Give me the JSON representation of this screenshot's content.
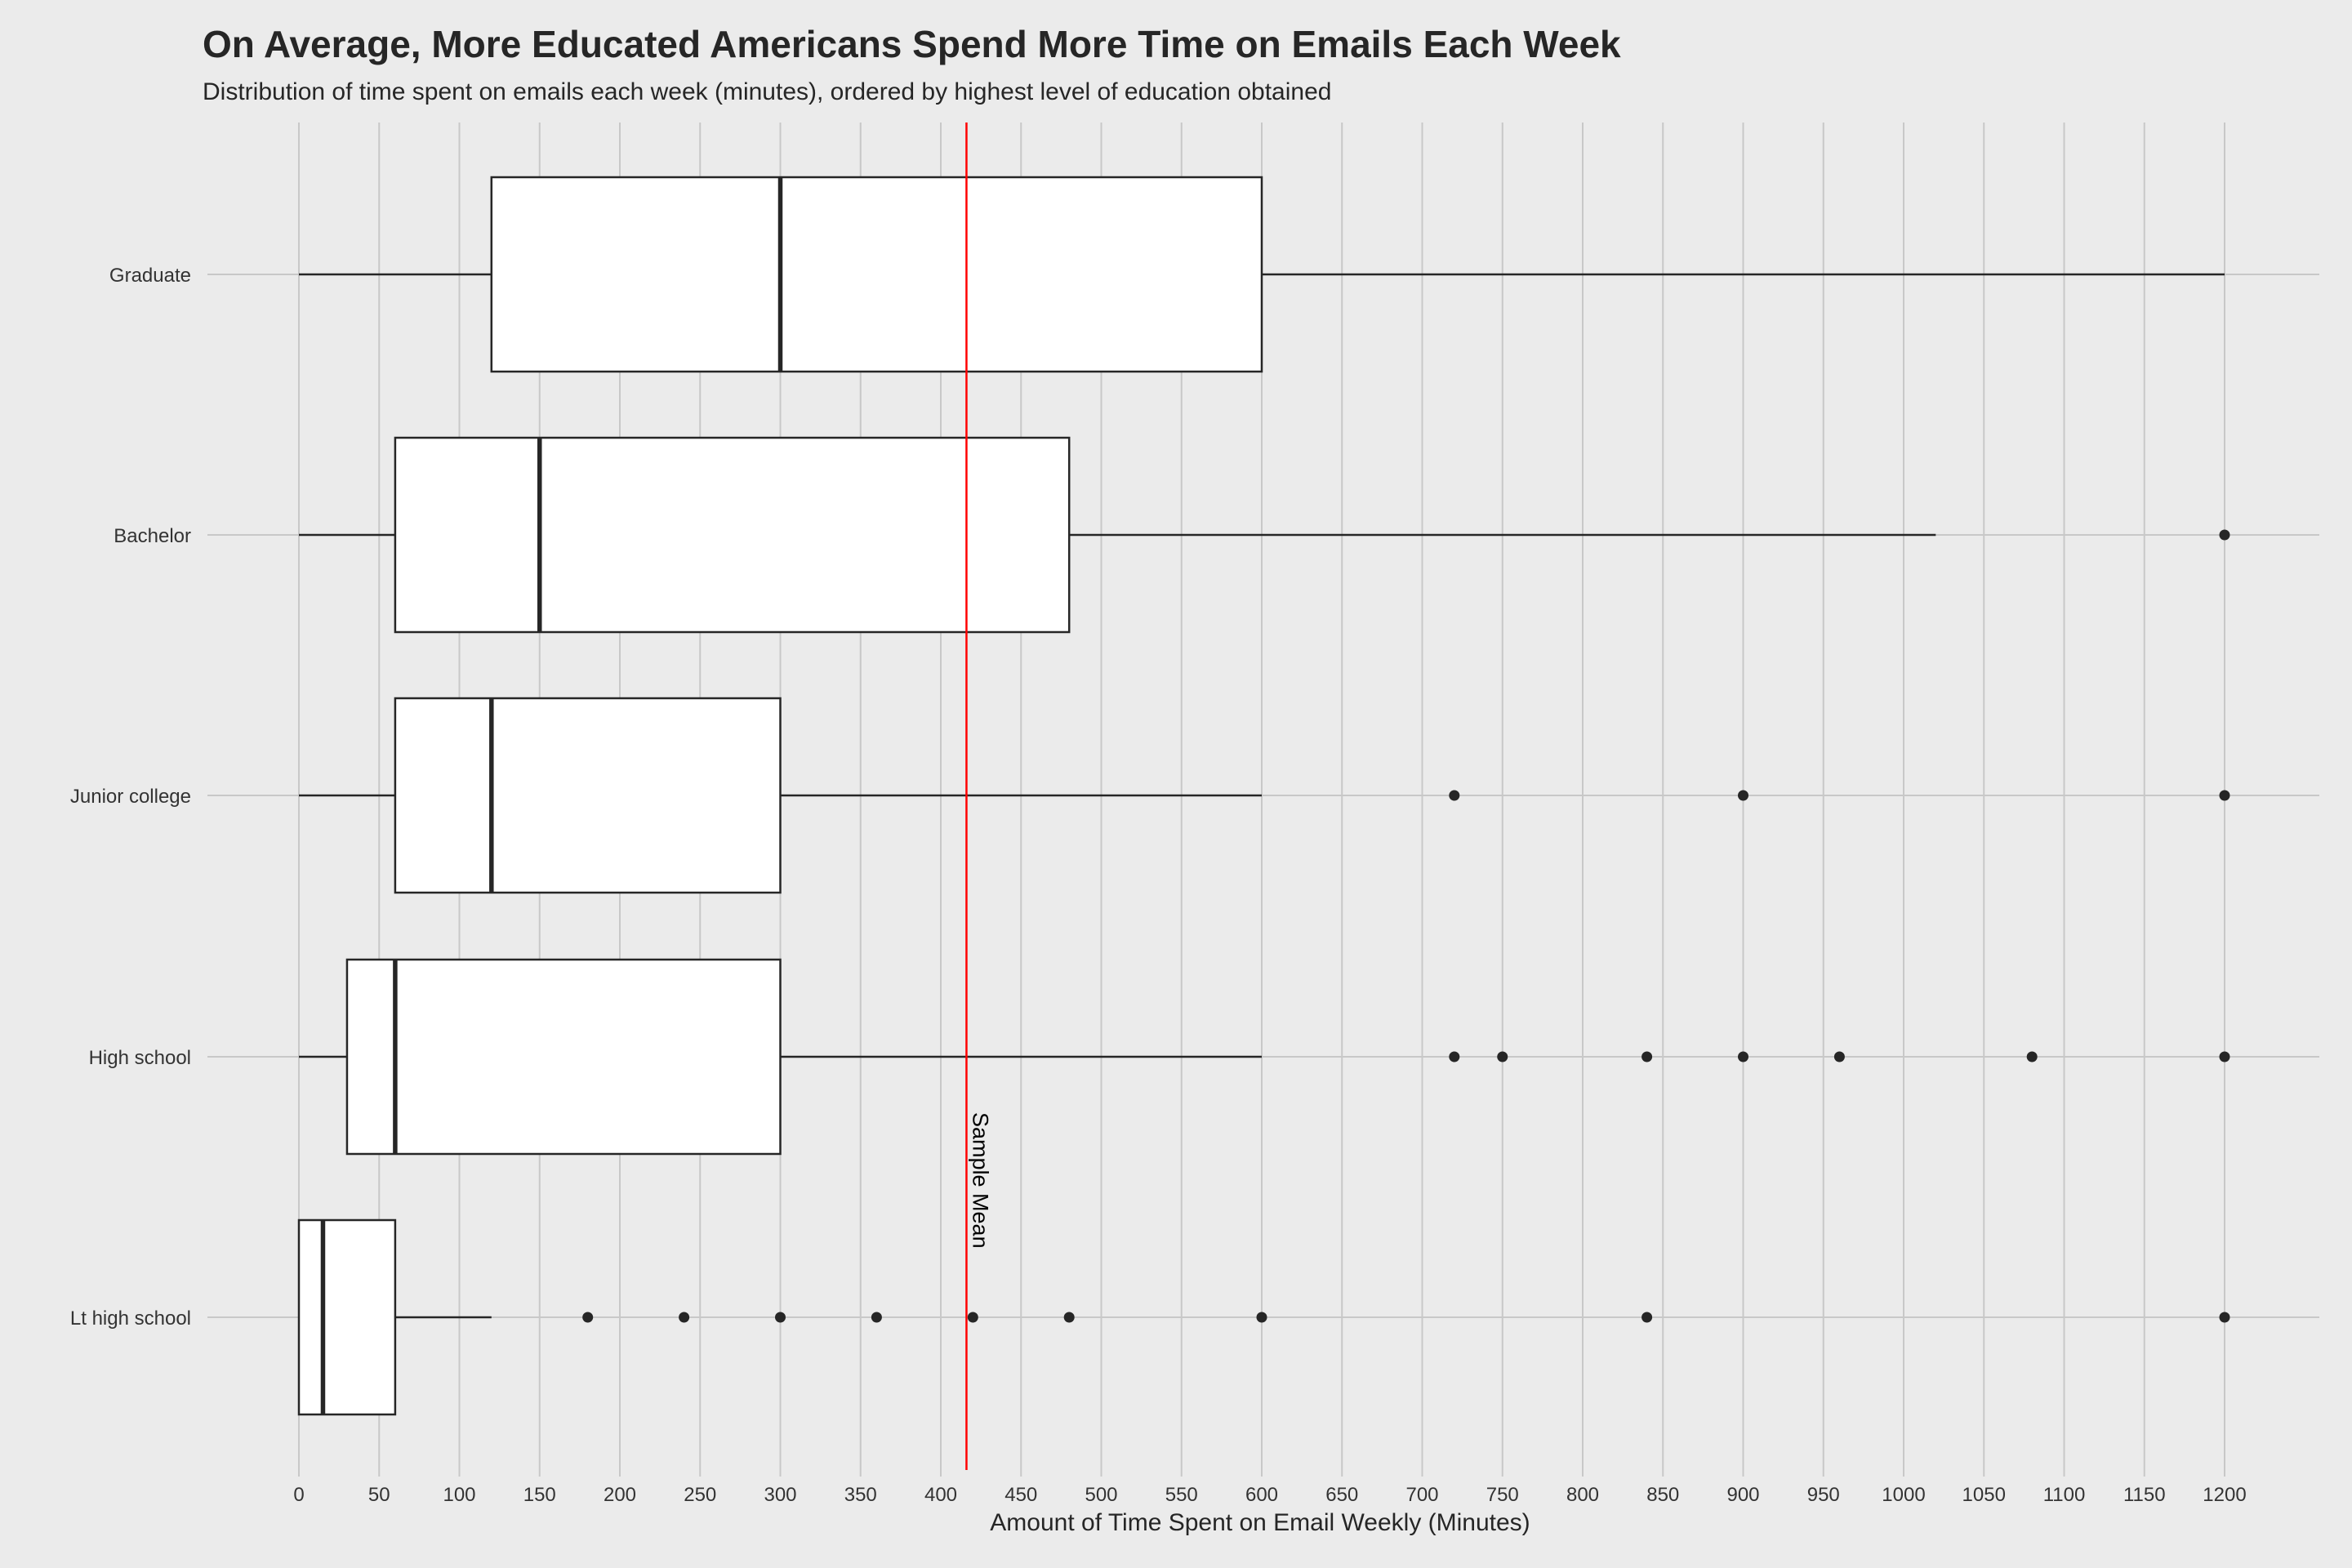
{
  "chart_data": {
    "type": "boxplot",
    "orientation": "horizontal",
    "title": "On Average, More Educated Americans Spend More Time on Emails Each Week",
    "subtitle": "Distribution of time spent on emails each week (minutes), ordered by highest level of education obtained",
    "xlabel": "Amount of Time Spent on Email Weekly (Minutes)",
    "ylabel": "",
    "xlim": [
      -30,
      1260
    ],
    "xticks": [
      "0",
      "50",
      "100",
      "150",
      "200",
      "250",
      "300",
      "350",
      "400",
      "450",
      "500",
      "550",
      "600",
      "650",
      "700",
      "750",
      "800",
      "850",
      "900",
      "950",
      "1000",
      "1050",
      "1100",
      "1150",
      "1200"
    ],
    "grid": true,
    "categories": [
      "Graduate",
      "Bachelor",
      "Junior college",
      "High school",
      "Lt high school"
    ],
    "boxes": [
      {
        "category": "Graduate",
        "whisker_low": 0,
        "q1": 120,
        "median": 300,
        "q3": 600,
        "whisker_high": 1200,
        "outliers": []
      },
      {
        "category": "Bachelor",
        "whisker_low": 0,
        "q1": 60,
        "median": 150,
        "q3": 480,
        "whisker_high": 1020,
        "outliers": [
          1200
        ]
      },
      {
        "category": "Junior college",
        "whisker_low": 0,
        "q1": 60,
        "median": 120,
        "q3": 300,
        "whisker_high": 600,
        "outliers": [
          720,
          900,
          1200
        ]
      },
      {
        "category": "High school",
        "whisker_low": 0,
        "q1": 30,
        "median": 60,
        "q3": 300,
        "whisker_high": 600,
        "outliers": [
          720,
          750,
          840,
          900,
          960,
          1080,
          1200
        ]
      },
      {
        "category": "Lt high school",
        "whisker_low": 0,
        "q1": 0,
        "median": 15,
        "q3": 60,
        "whisker_high": 120,
        "outliers": [
          180,
          240,
          300,
          360,
          420,
          480,
          600,
          840,
          1200
        ]
      }
    ],
    "reference_line": {
      "value": 416,
      "label": "Sample Mean",
      "color": "#ff0000"
    },
    "colors": {
      "background": "#ebebeb",
      "grid": "#c8c8c8",
      "box_fill": "#ffffff",
      "box_stroke": "#262626",
      "text": "#262626"
    }
  }
}
